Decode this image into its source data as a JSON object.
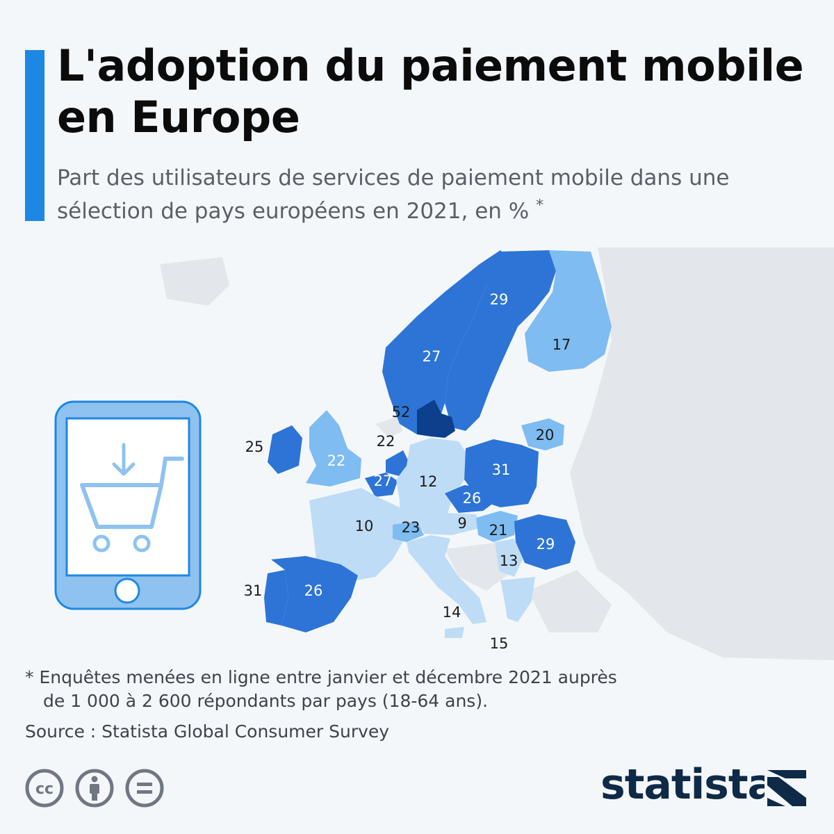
{
  "header": {
    "title": "L'adoption du paiement mobile en Europe",
    "subtitle": "Part des utilisateurs de services de paiement mobile dans une sélection de pays européens en 2021, en %",
    "subtitle_marker": "*"
  },
  "map": {
    "colors": {
      "darkest": "#0c3f8c",
      "dark": "#2d74d6",
      "light": "#7ebcf1",
      "lightest": "#bfdcf6",
      "non_selected": "#e3e6ea",
      "sea": "#f3f7fa"
    },
    "countries": [
      {
        "code": "NO",
        "value": 27,
        "label": "27",
        "shade": "dark"
      },
      {
        "code": "SE",
        "value": 29,
        "label": "29",
        "shade": "dark"
      },
      {
        "code": "FI",
        "value": 17,
        "label": "17",
        "shade": "light"
      },
      {
        "code": "DK",
        "value": 52,
        "label": "52",
        "shade": "darkest"
      },
      {
        "code": "LT",
        "value": 20,
        "label": "20",
        "shade": "light"
      },
      {
        "code": "IE",
        "value": 25,
        "label": "25",
        "shade": "dark"
      },
      {
        "code": "GB",
        "value": 22,
        "label": "22",
        "shade": "light"
      },
      {
        "code": "NL",
        "value": 22,
        "label": "22",
        "shade": "dark"
      },
      {
        "code": "BE",
        "value": 27,
        "label": "27",
        "shade": "dark"
      },
      {
        "code": "DE",
        "value": 12,
        "label": "12",
        "shade": "lightest"
      },
      {
        "code": "PL",
        "value": 31,
        "label": "31",
        "shade": "dark"
      },
      {
        "code": "CZ",
        "value": 26,
        "label": "26",
        "shade": "dark"
      },
      {
        "code": "FR",
        "value": 10,
        "label": "10",
        "shade": "lightest"
      },
      {
        "code": "CH",
        "value": 23,
        "label": "23",
        "shade": "light"
      },
      {
        "code": "AT",
        "value": 9,
        "label": "9",
        "shade": "lightest"
      },
      {
        "code": "HU",
        "value": 21,
        "label": "21",
        "shade": "light"
      },
      {
        "code": "RO",
        "value": 29,
        "label": "29",
        "shade": "dark"
      },
      {
        "code": "RS",
        "value": 13,
        "label": "13",
        "shade": "lightest"
      },
      {
        "code": "PT",
        "value": 31,
        "label": "31",
        "shade": "dark"
      },
      {
        "code": "ES",
        "value": 26,
        "label": "26",
        "shade": "dark"
      },
      {
        "code": "IT",
        "value": 14,
        "label": "14",
        "shade": "lightest"
      },
      {
        "code": "GR",
        "value": 15,
        "label": "15",
        "shade": "lightest"
      }
    ]
  },
  "footnote": {
    "line1": "* Enquêtes menées en ligne entre janvier et décembre 2021 auprès",
    "line2": "de 1 000 à 2 600 répondants par pays (18-64 ans)."
  },
  "source": "Source : Statista Global Consumer Survey",
  "brand": {
    "name": "statista",
    "color": "#0e2a47"
  },
  "illustration": {
    "icon": "phone-shopping-cart-icon",
    "color": "#8fc2ee"
  }
}
